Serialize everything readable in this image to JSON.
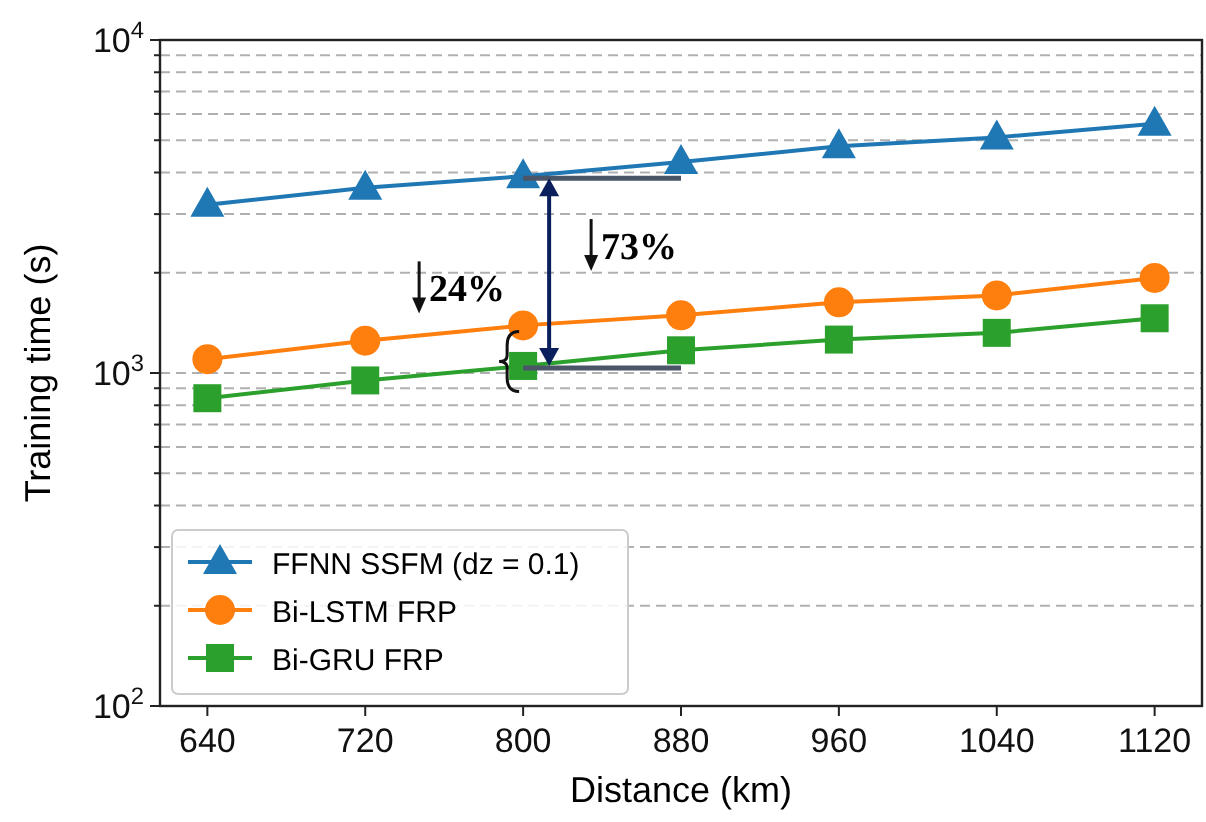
{
  "chart_data": {
    "type": "line",
    "xlabel": "Distance (km)",
    "ylabel": "Training time (s)",
    "x": [
      640,
      720,
      800,
      880,
      960,
      1040,
      1120
    ],
    "series": [
      {
        "name": "FFNN SSFM (dz = 0.1)",
        "color": "#1f77b4",
        "marker": "triangle",
        "values": [
          3200,
          3600,
          3900,
          4300,
          4800,
          5100,
          5600
        ]
      },
      {
        "name": "Bi-LSTM FRP",
        "color": "#ff7f0e",
        "marker": "circle",
        "values": [
          1100,
          1250,
          1390,
          1490,
          1630,
          1710,
          1930
        ]
      },
      {
        "name": "Bi-GRU FRP",
        "color": "#2ca02c",
        "marker": "square",
        "values": [
          840,
          950,
          1050,
          1170,
          1260,
          1320,
          1460
        ]
      }
    ],
    "log": "y",
    "xlim": [
      616,
      1144
    ],
    "ylim": [
      100,
      10000
    ],
    "xticks": [
      640,
      720,
      800,
      880,
      960,
      1040,
      1120
    ],
    "yticks": [
      {
        "value": 100,
        "label": "10$^{2}$"
      },
      {
        "value": 200,
        "label": null
      },
      {
        "value": 300,
        "label": null
      },
      {
        "value": 400,
        "label": null
      },
      {
        "value": 500,
        "label": null
      },
      {
        "value": 600,
        "label": null
      },
      {
        "value": 700,
        "label": null
      },
      {
        "value": 800,
        "label": null
      },
      {
        "value": 900,
        "label": null
      },
      {
        "value": 1000,
        "label": "10$^{3}$"
      },
      {
        "value": 2000,
        "label": null
      },
      {
        "value": 3000,
        "label": null
      },
      {
        "value": 4000,
        "label": null
      },
      {
        "value": 5000,
        "label": null
      },
      {
        "value": 6000,
        "label": null
      },
      {
        "value": 7000,
        "label": null
      },
      {
        "value": 8000,
        "label": null
      },
      {
        "value": 9000,
        "label": null
      },
      {
        "value": 10000,
        "label": "10$^{4}$"
      }
    ],
    "grid": "y",
    "legend": "bottom left",
    "annotations": [
      {
        "text": "73%",
        "x": 800,
        "y": 3900
      },
      {
        "text": "24%",
        "x": 800,
        "y": 1390
      }
    ]
  }
}
